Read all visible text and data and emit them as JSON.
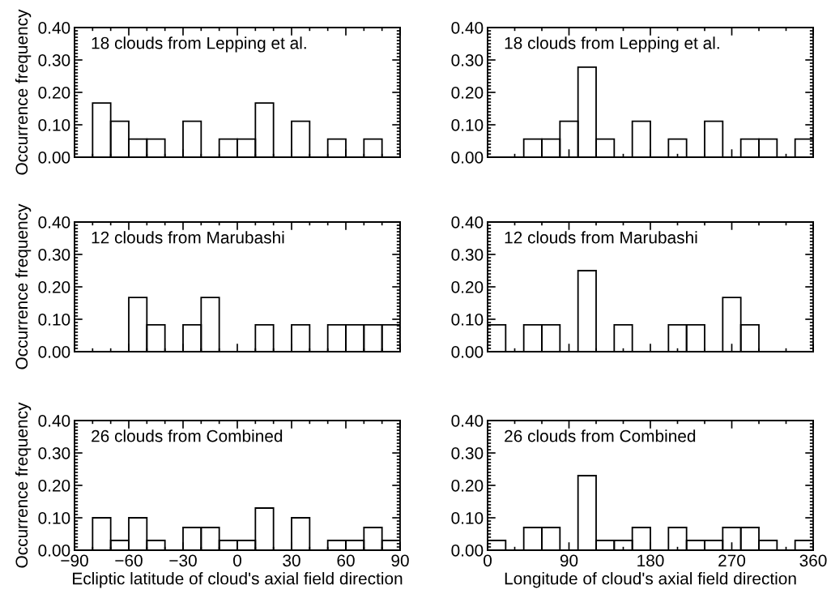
{
  "chart_data": [
    {
      "type": "histogram",
      "ylabel": "Occurrence frequency",
      "annotations": [
        "18 clouds from Lepping et al."
      ],
      "bins": [
        -90,
        -80,
        -70,
        -60,
        -50,
        -40,
        -30,
        -20,
        -10,
        0,
        10,
        20,
        30,
        40,
        50,
        60,
        70,
        80,
        90
      ],
      "values": [
        0,
        0.167,
        0.111,
        0.056,
        0.056,
        0,
        0.111,
        0,
        0.056,
        0.056,
        0.167,
        0,
        0.111,
        0,
        0.056,
        0,
        0.056,
        0
      ],
      "color": "#000000",
      "xlim": [
        -90,
        90
      ],
      "xticks": [
        -90,
        -60,
        -30,
        0,
        30,
        60,
        90
      ],
      "ylim": [
        0,
        0.4
      ],
      "yticks": [
        {
          "value": 0,
          "label": "0.00"
        },
        {
          "value": 0.1,
          "label": "0.10"
        },
        {
          "value": 0.2,
          "label": "0.20"
        },
        {
          "value": 0.3,
          "label": "0.30"
        },
        {
          "value": 0.4,
          "label": "0.40"
        }
      ],
      "tick_labels": "y",
      "grid": false
    },
    {
      "type": "histogram",
      "annotations": [
        "18 clouds from Lepping et al."
      ],
      "bins": [
        0,
        20,
        40,
        60,
        80,
        100,
        120,
        140,
        160,
        180,
        200,
        220,
        240,
        260,
        280,
        300,
        320,
        340,
        360
      ],
      "values": [
        0,
        0,
        0.056,
        0.056,
        0.111,
        0.278,
        0.056,
        0,
        0.111,
        0,
        0.056,
        0,
        0.111,
        0,
        0.056,
        0.056,
        0,
        0.056
      ],
      "color": "#000000",
      "xlim": [
        0,
        360
      ],
      "xticks": [
        0,
        90,
        180,
        270,
        360
      ],
      "ylim": [
        0,
        0.4
      ],
      "yticks": [
        {
          "value": 0,
          "label": "0.00"
        },
        {
          "value": 0.1,
          "label": "0.10"
        },
        {
          "value": 0.2,
          "label": "0.20"
        },
        {
          "value": 0.3,
          "label": "0.30"
        },
        {
          "value": 0.4,
          "label": "0.40"
        }
      ],
      "tick_labels": "y",
      "grid": false
    },
    {
      "type": "histogram",
      "ylabel": "Occurrence frequency",
      "annotations": [
        "12 clouds from Marubashi"
      ],
      "bins": [
        -90,
        -80,
        -70,
        -60,
        -50,
        -40,
        -30,
        -20,
        -10,
        0,
        10,
        20,
        30,
        40,
        50,
        60,
        70,
        80,
        90
      ],
      "values": [
        0,
        0,
        0,
        0.167,
        0.083,
        0,
        0.083,
        0.167,
        0,
        0,
        0.083,
        0,
        0.083,
        0,
        0.083,
        0.083,
        0.083,
        0.083
      ],
      "color": "#000000",
      "xlim": [
        -90,
        90
      ],
      "xticks": [
        -90,
        -60,
        -30,
        0,
        30,
        60,
        90
      ],
      "ylim": [
        0,
        0.4
      ],
      "yticks": [
        {
          "value": 0,
          "label": "0.00"
        },
        {
          "value": 0.1,
          "label": "0.10"
        },
        {
          "value": 0.2,
          "label": "0.20"
        },
        {
          "value": 0.3,
          "label": "0.30"
        },
        {
          "value": 0.4,
          "label": "0.40"
        }
      ],
      "tick_labels": "y",
      "grid": false
    },
    {
      "type": "histogram",
      "annotations": [
        "12 clouds from Marubashi"
      ],
      "bins": [
        0,
        20,
        40,
        60,
        80,
        100,
        120,
        140,
        160,
        180,
        200,
        220,
        240,
        260,
        280,
        300,
        320,
        340,
        360
      ],
      "values": [
        0.083,
        0,
        0.083,
        0.083,
        0,
        0.25,
        0,
        0.083,
        0,
        0,
        0.083,
        0.083,
        0,
        0.167,
        0.083,
        0,
        0,
        0
      ],
      "color": "#000000",
      "xlim": [
        0,
        360
      ],
      "xticks": [
        0,
        90,
        180,
        270,
        360
      ],
      "ylim": [
        0,
        0.4
      ],
      "yticks": [
        {
          "value": 0,
          "label": "0.00"
        },
        {
          "value": 0.1,
          "label": "0.10"
        },
        {
          "value": 0.2,
          "label": "0.20"
        },
        {
          "value": 0.3,
          "label": "0.30"
        },
        {
          "value": 0.4,
          "label": "0.40"
        }
      ],
      "tick_labels": "y",
      "grid": false
    },
    {
      "type": "histogram",
      "ylabel": "Occurrence frequency",
      "xlabel": "Ecliptic latitude of cloud's axial field direction",
      "annotations": [
        "26 clouds from Combined"
      ],
      "bins": [
        -90,
        -80,
        -70,
        -60,
        -50,
        -40,
        -30,
        -20,
        -10,
        0,
        10,
        20,
        30,
        40,
        50,
        60,
        70,
        80,
        90
      ],
      "values": [
        0,
        0.1,
        0.03,
        0.1,
        0.03,
        0,
        0.07,
        0.07,
        0.03,
        0.03,
        0.13,
        0,
        0.1,
        0,
        0.03,
        0.03,
        0.07,
        0.03
      ],
      "color": "#000000",
      "xlim": [
        -90,
        90
      ],
      "xticks": [
        {
          "value": -90,
          "label": "−90"
        },
        {
          "value": -60,
          "label": "−60"
        },
        {
          "value": -30,
          "label": "−30"
        },
        0,
        30,
        60,
        90
      ],
      "ylim": [
        0,
        0.4
      ],
      "yticks": [
        {
          "value": 0,
          "label": "0.00"
        },
        {
          "value": 0.1,
          "label": "0.10"
        },
        {
          "value": 0.2,
          "label": "0.20"
        },
        {
          "value": 0.3,
          "label": "0.30"
        },
        {
          "value": 0.4,
          "label": "0.40"
        }
      ],
      "grid": false
    },
    {
      "type": "histogram",
      "xlabel": "Longitude of cloud's axial field direction",
      "annotations": [
        "26 clouds from Combined"
      ],
      "bins": [
        0,
        20,
        40,
        60,
        80,
        100,
        120,
        140,
        160,
        180,
        200,
        220,
        240,
        260,
        280,
        300,
        320,
        340,
        360
      ],
      "values": [
        0.03,
        0,
        0.07,
        0.07,
        0,
        0.23,
        0.03,
        0.03,
        0.07,
        0,
        0.07,
        0.03,
        0.03,
        0.07,
        0.07,
        0.03,
        0,
        0.03
      ],
      "color": "#000000",
      "xlim": [
        0,
        360
      ],
      "xticks": [
        0,
        90,
        180,
        270,
        360
      ],
      "ylim": [
        0,
        0.4
      ],
      "yticks": [
        {
          "value": 0,
          "label": "0.00"
        },
        {
          "value": 0.1,
          "label": "0.10"
        },
        {
          "value": 0.2,
          "label": "0.20"
        },
        {
          "value": 0.3,
          "label": "0.30"
        },
        {
          "value": 0.4,
          "label": "0.40"
        }
      ],
      "grid": false
    }
  ]
}
